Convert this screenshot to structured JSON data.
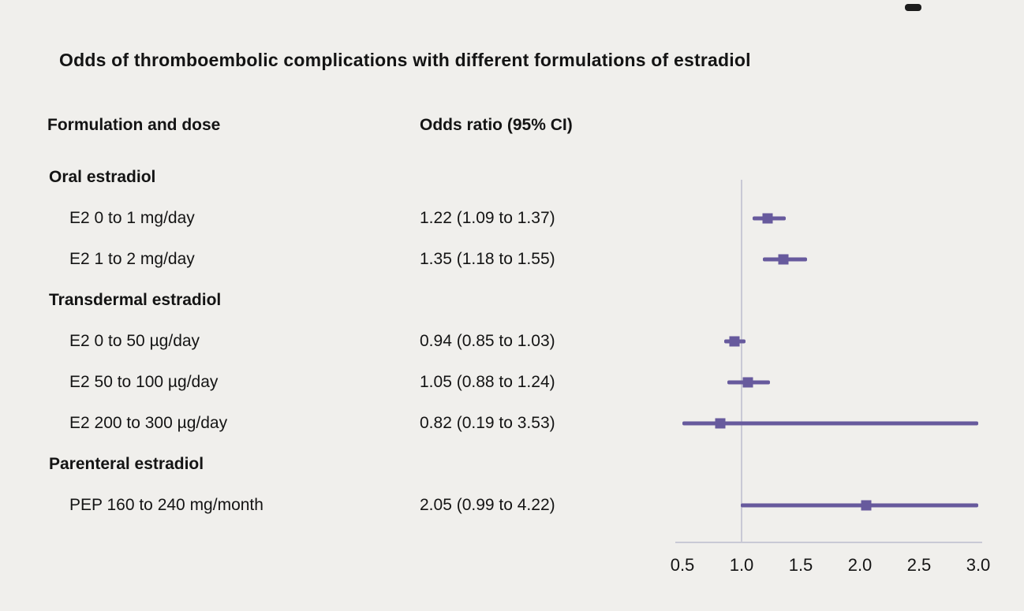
{
  "chart_data": {
    "type": "forest",
    "title": "Odds of thromboembolic complications with different formulations of estradiol",
    "columns": {
      "label": "Formulation and dose",
      "estimate": "Odds ratio (95% CI)"
    },
    "x_axis": {
      "min": 0.5,
      "max": 3.0,
      "ticks": [
        "0.5",
        "1.0",
        "1.5",
        "2.0",
        "2.5",
        "3.0"
      ],
      "reference_line": 1.0,
      "grid": false
    },
    "groups": [
      {
        "label": "Oral estradiol",
        "rows": [
          {
            "label": "E2 0 to 1 mg/day",
            "estimate_text": "1.22 (1.09 to 1.37)",
            "or": 1.22,
            "ci_low": 1.09,
            "ci_high": 1.37
          },
          {
            "label": "E2 1 to 2 mg/day",
            "estimate_text": "1.35 (1.18 to 1.55)",
            "or": 1.35,
            "ci_low": 1.18,
            "ci_high": 1.55
          }
        ]
      },
      {
        "label": "Transdermal estradiol",
        "rows": [
          {
            "label": "E2 0 to 50 µg/day",
            "estimate_text": "0.94 (0.85 to 1.03)",
            "or": 0.94,
            "ci_low": 0.85,
            "ci_high": 1.03
          },
          {
            "label": "E2 50 to 100 µg/day",
            "estimate_text": "1.05 (0.88 to 1.24)",
            "or": 1.05,
            "ci_low": 0.88,
            "ci_high": 1.24
          },
          {
            "label": "E2 200 to 300 µg/day",
            "estimate_text": "0.82 (0.19 to 3.53)",
            "or": 0.82,
            "ci_low": 0.19,
            "ci_high": 3.53
          }
        ]
      },
      {
        "label": "Parenteral estradiol",
        "rows": [
          {
            "label": "PEP 160 to 240 mg/month",
            "estimate_text": "2.05 (0.99 to 4.22)",
            "or": 2.05,
            "ci_low": 0.99,
            "ci_high": 4.22
          }
        ]
      }
    ]
  },
  "colors": {
    "marker": "#675a9d",
    "ci_line": "#675a9d",
    "axis_line": "#c9c9d5",
    "background": "#f0efec",
    "text": "#141414"
  }
}
